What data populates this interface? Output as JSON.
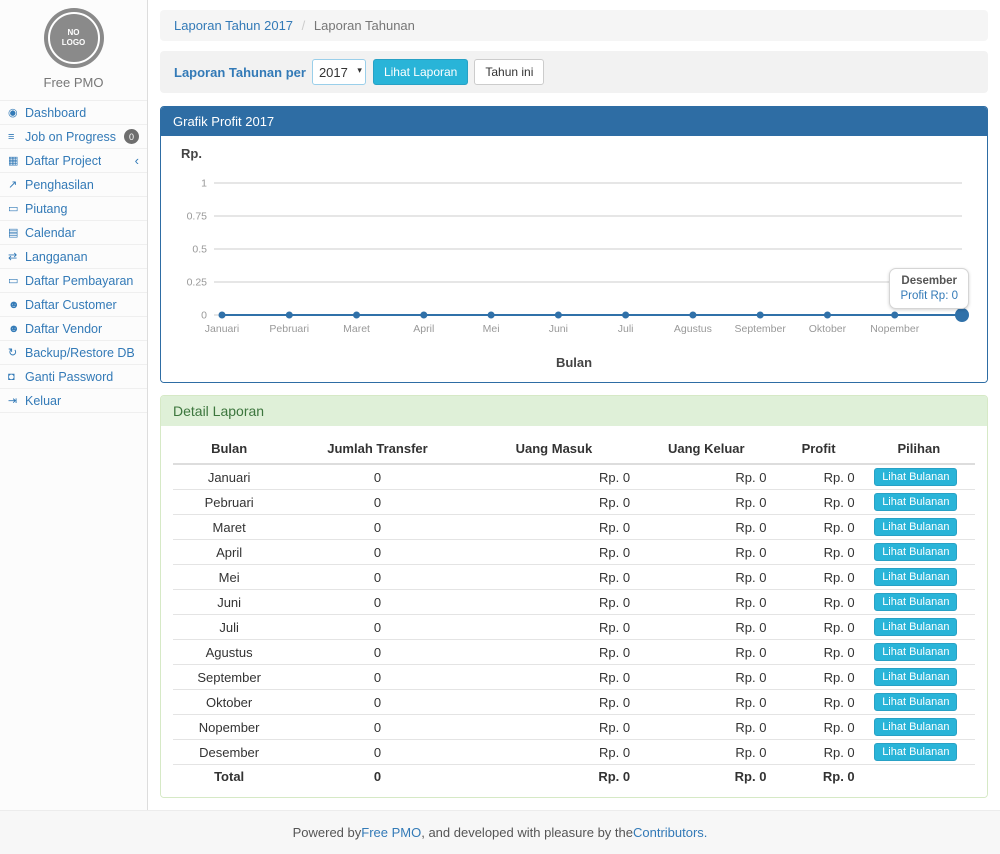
{
  "sidebar": {
    "logo_text": "NO\nLOGO",
    "brand": "Free PMO",
    "items": [
      {
        "label": "Dashboard",
        "icon": "dashboard-icon",
        "glyph": "◉"
      },
      {
        "label": "Job on Progress",
        "icon": "tasks-icon",
        "glyph": "≡",
        "badge": "0"
      },
      {
        "label": "Daftar Project",
        "icon": "table-icon",
        "glyph": "▦",
        "chevron": "‹"
      },
      {
        "label": "Penghasilan",
        "icon": "line-chart-icon",
        "glyph": "↗"
      },
      {
        "label": "Piutang",
        "icon": "money-icon",
        "glyph": "▭"
      },
      {
        "label": "Calendar",
        "icon": "calendar-icon",
        "glyph": "▤"
      },
      {
        "label": "Langganan",
        "icon": "retweet-icon",
        "glyph": "⇄"
      },
      {
        "label": "Daftar Pembayaran",
        "icon": "money-icon",
        "glyph": "▭"
      },
      {
        "label": "Daftar Customer",
        "icon": "users-icon",
        "glyph": "☻"
      },
      {
        "label": "Daftar Vendor",
        "icon": "users-icon",
        "glyph": "☻"
      },
      {
        "label": "Backup/Restore DB",
        "icon": "refresh-icon",
        "glyph": "↻"
      },
      {
        "label": "Ganti Password",
        "icon": "lock-icon",
        "glyph": "◘"
      },
      {
        "label": "Keluar",
        "icon": "sign-out-icon",
        "glyph": "⇥"
      }
    ]
  },
  "breadcrumb": {
    "link": "Laporan Tahun 2017",
    "separator": "/",
    "current": "Laporan Tahunan"
  },
  "filter": {
    "label": "Laporan Tahunan per",
    "year": "2017",
    "submit_label": "Lihat Laporan",
    "this_year_label": "Tahun ini"
  },
  "chart_panel": {
    "title": "Grafik Profit 2017"
  },
  "chart_data": {
    "type": "line",
    "title": "Grafik Profit 2017",
    "xlabel": "Bulan",
    "ylabel": "Rp.",
    "categories": [
      "Januari",
      "Pebruari",
      "Maret",
      "April",
      "Mei",
      "Juni",
      "Juli",
      "Agustus",
      "September",
      "Oktober",
      "Nopember",
      "Desember"
    ],
    "series": [
      {
        "name": "Profit",
        "values": [
          0,
          0,
          0,
          0,
          0,
          0,
          0,
          0,
          0,
          0,
          0,
          0
        ]
      }
    ],
    "ylim": [
      0,
      1
    ],
    "yticks": [
      0,
      0.25,
      0.5,
      0.75,
      1
    ],
    "grid": true,
    "legend": "none",
    "line_color": "#3071a9",
    "grid_color": "#cccccc",
    "tick_color": "#999999",
    "tooltip": {
      "title": "Desember",
      "value": "Profit Rp: 0"
    }
  },
  "detail": {
    "title": "Detail Laporan",
    "columns": [
      "Bulan",
      "Jumlah Transfer",
      "Uang Masuk",
      "Uang Keluar",
      "Profit",
      "Pilihan"
    ],
    "action_label": "Lihat Bulanan",
    "rows": [
      {
        "bulan": "Januari",
        "transfer": "0",
        "masuk": "Rp. 0",
        "keluar": "Rp. 0",
        "profit": "Rp. 0"
      },
      {
        "bulan": "Pebruari",
        "transfer": "0",
        "masuk": "Rp. 0",
        "keluar": "Rp. 0",
        "profit": "Rp. 0"
      },
      {
        "bulan": "Maret",
        "transfer": "0",
        "masuk": "Rp. 0",
        "keluar": "Rp. 0",
        "profit": "Rp. 0"
      },
      {
        "bulan": "April",
        "transfer": "0",
        "masuk": "Rp. 0",
        "keluar": "Rp. 0",
        "profit": "Rp. 0"
      },
      {
        "bulan": "Mei",
        "transfer": "0",
        "masuk": "Rp. 0",
        "keluar": "Rp. 0",
        "profit": "Rp. 0"
      },
      {
        "bulan": "Juni",
        "transfer": "0",
        "masuk": "Rp. 0",
        "keluar": "Rp. 0",
        "profit": "Rp. 0"
      },
      {
        "bulan": "Juli",
        "transfer": "0",
        "masuk": "Rp. 0",
        "keluar": "Rp. 0",
        "profit": "Rp. 0"
      },
      {
        "bulan": "Agustus",
        "transfer": "0",
        "masuk": "Rp. 0",
        "keluar": "Rp. 0",
        "profit": "Rp. 0"
      },
      {
        "bulan": "September",
        "transfer": "0",
        "masuk": "Rp. 0",
        "keluar": "Rp. 0",
        "profit": "Rp. 0"
      },
      {
        "bulan": "Oktober",
        "transfer": "0",
        "masuk": "Rp. 0",
        "keluar": "Rp. 0",
        "profit": "Rp. 0"
      },
      {
        "bulan": "Nopember",
        "transfer": "0",
        "masuk": "Rp. 0",
        "keluar": "Rp. 0",
        "profit": "Rp. 0"
      },
      {
        "bulan": "Desember",
        "transfer": "0",
        "masuk": "Rp. 0",
        "keluar": "Rp. 0",
        "profit": "Rp. 0"
      }
    ],
    "total": {
      "label": "Total",
      "transfer": "0",
      "masuk": "Rp. 0",
      "keluar": "Rp. 0",
      "profit": "Rp. 0"
    }
  },
  "footer": {
    "prefix": "Powered by ",
    "link1": "Free PMO",
    "middle": ", and developed with pleasure by the ",
    "link2": "Contributors."
  },
  "colors": {
    "accent_link": "#337ab7",
    "panel_primary_header": "#2e6da4",
    "panel_success_bg": "#dff0d8",
    "panel_success_text": "#3c763d",
    "info_button": "#29b4d8",
    "chart_line": "#3071a9"
  }
}
